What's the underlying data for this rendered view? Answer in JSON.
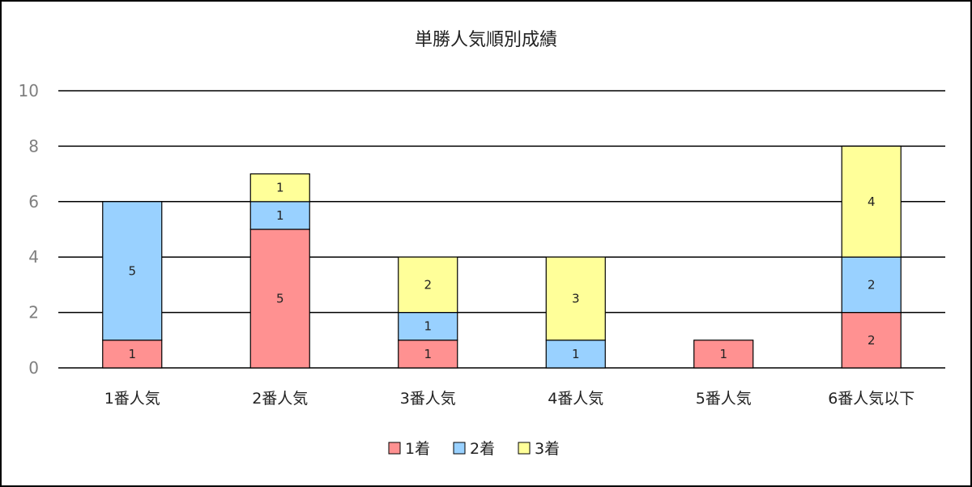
{
  "chart_data": {
    "type": "bar",
    "stacked": true,
    "title": "単勝人気順別成績",
    "xlabel": "",
    "ylabel": "",
    "ylim": [
      0,
      10
    ],
    "yticks": [
      0,
      2,
      4,
      6,
      8,
      10
    ],
    "grid": true,
    "legend_position": "bottom",
    "categories": [
      "1番人気",
      "2番人気",
      "3番人気",
      "4番人気",
      "5番人気",
      "6番人気以下"
    ],
    "series": [
      {
        "name": "1着",
        "color": "#ff9191",
        "values": [
          1,
          5,
          1,
          0,
          1,
          2
        ]
      },
      {
        "name": "2着",
        "color": "#99d1ff",
        "values": [
          5,
          1,
          1,
          1,
          0,
          2
        ]
      },
      {
        "name": "3着",
        "color": "#ffff99",
        "values": [
          0,
          1,
          2,
          3,
          0,
          4
        ]
      }
    ]
  }
}
